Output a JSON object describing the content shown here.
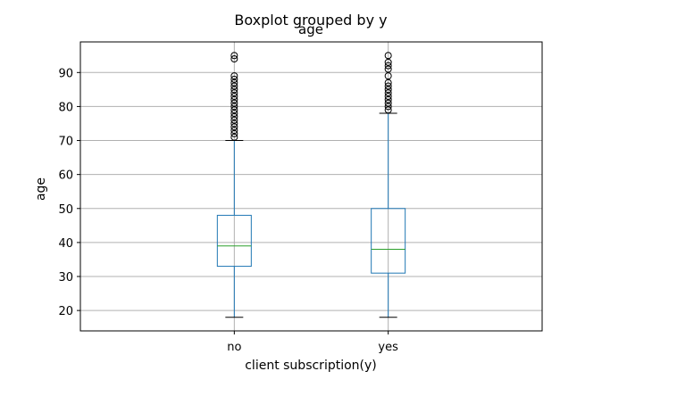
{
  "chart_data": {
    "type": "box",
    "suptitle": "Boxplot grouped by y",
    "title": "age",
    "xlabel": "client subscription(y)",
    "ylabel": "age",
    "ylim": [
      14,
      99
    ],
    "yticks": [
      20,
      30,
      40,
      50,
      60,
      70,
      80,
      90
    ],
    "grid": true,
    "categories": [
      "no",
      "yes"
    ],
    "boxes": [
      {
        "category": "no",
        "whisker_low": 18,
        "q1": 33,
        "median": 39,
        "q3": 48,
        "whisker_high": 70,
        "outliers": [
          71,
          72,
          73,
          74,
          75,
          76,
          77,
          78,
          79,
          80,
          81,
          82,
          83,
          84,
          85,
          86,
          87,
          88,
          89,
          94,
          95
        ]
      },
      {
        "category": "yes",
        "whisker_low": 18,
        "q1": 31,
        "median": 38,
        "q3": 50,
        "whisker_high": 78,
        "outliers": [
          79,
          80,
          81,
          82,
          83,
          84,
          85,
          86,
          87,
          89,
          91,
          92,
          93,
          95
        ]
      }
    ],
    "colors": {
      "box": "#1f77b4",
      "median": "#2ca02c",
      "whisker_cap": "#000000",
      "grid": "#b0b0b0",
      "outlier_edge": "#000000"
    }
  }
}
